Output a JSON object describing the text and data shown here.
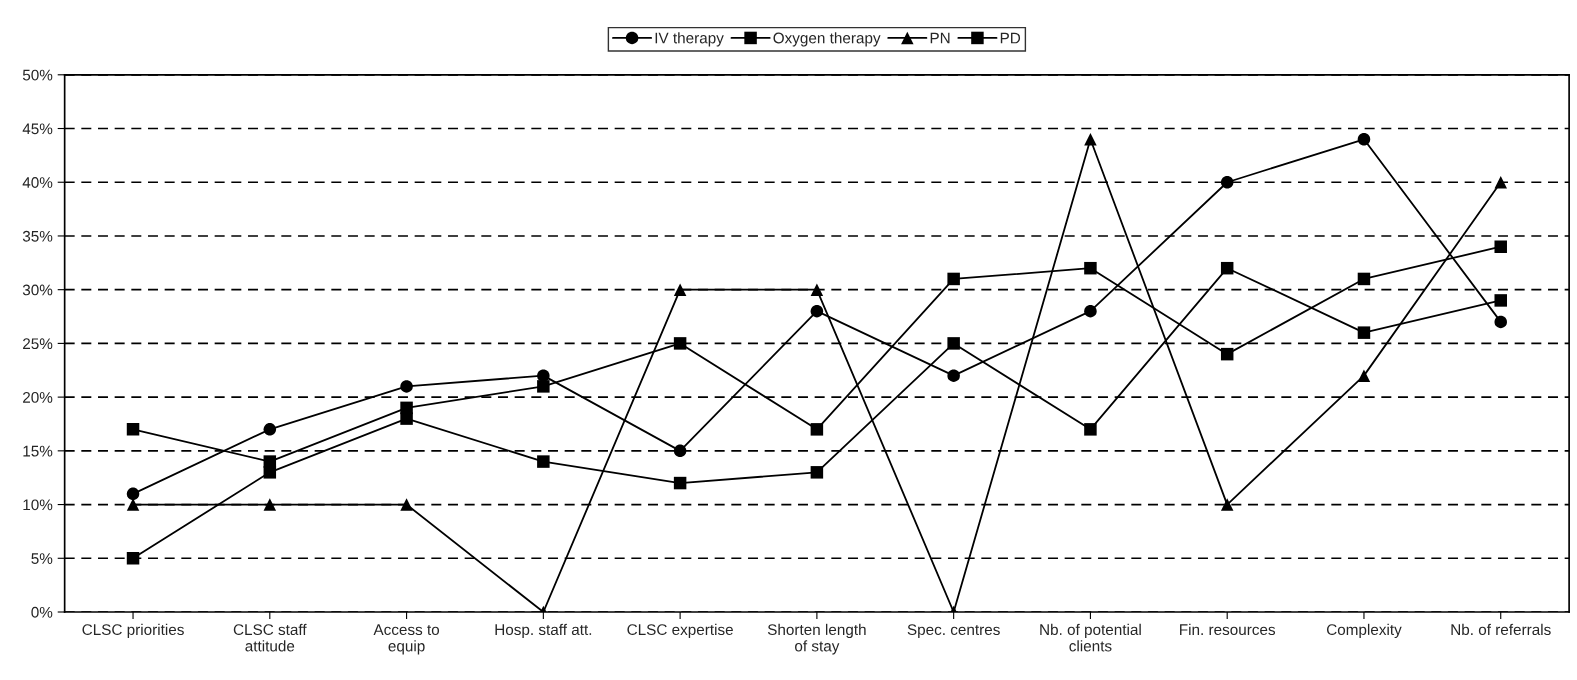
{
  "chart_data": {
    "type": "line",
    "categories": [
      "CLSC priorities",
      "CLSC staff\nattitude",
      "Access to\nequip",
      "Hosp. staff att.",
      "CLSC expertise",
      "Shorten length\nof stay",
      "Spec. centres",
      "Nb. of potential\nclients",
      "Fin. resources",
      "Complexity",
      "Nb. of referrals"
    ],
    "series": [
      {
        "name": "IV therapy",
        "color": "#000000",
        "marker": "circle",
        "values": [
          11,
          17,
          21,
          22,
          15,
          28,
          22,
          28,
          40,
          44,
          27
        ]
      },
      {
        "name": "Oxygen therapy",
        "color": "#000000",
        "marker": "square",
        "values": [
          5,
          13,
          18,
          14,
          12,
          13,
          25,
          17,
          32,
          26,
          29
        ]
      },
      {
        "name": "PN",
        "color": "#000000",
        "marker": "triangle",
        "values": [
          10,
          10,
          10,
          0,
          30,
          30,
          0,
          44,
          10,
          22,
          40
        ]
      },
      {
        "name": "PD",
        "color": "#000000",
        "marker": "square",
        "values": [
          17,
          14,
          19,
          21,
          25,
          17,
          31,
          32,
          24,
          31,
          34
        ]
      }
    ],
    "ylim": [
      0,
      50
    ],
    "yticks": [
      {
        "value": 0,
        "label": "0%"
      },
      {
        "value": 5,
        "label": "5%"
      },
      {
        "value": 10,
        "label": "10%"
      },
      {
        "value": 15,
        "label": "15%"
      },
      {
        "value": 20,
        "label": "20%"
      },
      {
        "value": 25,
        "label": "25%"
      },
      {
        "value": 30,
        "label": "30%"
      },
      {
        "value": 35,
        "label": "35%"
      },
      {
        "value": 40,
        "label": "40%"
      },
      {
        "value": 45,
        "label": "45%"
      },
      {
        "value": 50,
        "label": "50%"
      }
    ],
    "grid": "y",
    "legend": "top",
    "line_style": "solid"
  }
}
